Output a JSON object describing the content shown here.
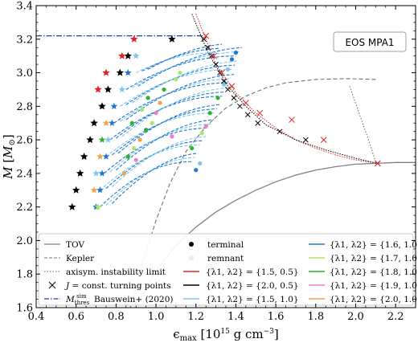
{
  "chart_data": {
    "type": "scatter",
    "eos_label": "EOS MPA1",
    "xlabel": "ϵmax [10^15 g cm^-3]",
    "ylabel": "M [M⊙]",
    "xlim": [
      0.4,
      2.3
    ],
    "ylim": [
      1.6,
      3.4
    ],
    "xticks": [
      "0.4",
      "0.6",
      "0.8",
      "1.0",
      "1.2",
      "1.4",
      "1.6",
      "1.8",
      "2.0",
      "2.2"
    ],
    "yticks": [
      "1.6",
      "1.8",
      "2.0",
      "2.2",
      "2.4",
      "2.6",
      "2.8",
      "3.0",
      "3.2",
      "3.4"
    ],
    "colors": {
      "tov": "#808080",
      "kepler": "#707070",
      "instab": "#606060",
      "threshold": "#1f3fb0",
      "red": "#e0262b",
      "blue": "#1f77d0",
      "light_blue": "#7ec8ec",
      "light_green": "#a6e86a",
      "green": "#2bb32b",
      "pink": "#ea7fc5",
      "orange": "#f0a24a"
    },
    "tov": [
      [
        0.92,
        1.65
      ],
      [
        1.0,
        1.82
      ],
      [
        1.1,
        1.97
      ],
      [
        1.2,
        2.08
      ],
      [
        1.3,
        2.17
      ],
      [
        1.4,
        2.24
      ],
      [
        1.5,
        2.3
      ],
      [
        1.6,
        2.35
      ],
      [
        1.7,
        2.39
      ],
      [
        1.8,
        2.42
      ],
      [
        1.9,
        2.44
      ],
      [
        2.0,
        2.455
      ],
      [
        2.1,
        2.46
      ],
      [
        2.2,
        2.465
      ],
      [
        2.3,
        2.465
      ]
    ],
    "kepler": [
      [
        0.86,
        1.55
      ],
      [
        0.92,
        1.82
      ],
      [
        1.0,
        2.12
      ],
      [
        1.07,
        2.34
      ],
      [
        1.15,
        2.53
      ],
      [
        1.25,
        2.68
      ],
      [
        1.35,
        2.79
      ],
      [
        1.45,
        2.86
      ],
      [
        1.55,
        2.91
      ],
      [
        1.65,
        2.94
      ],
      [
        1.8,
        2.96
      ],
      [
        1.95,
        2.965
      ],
      [
        2.1,
        2.96
      ]
    ],
    "instab": [
      [
        1.97,
        2.92
      ],
      [
        2.02,
        2.75
      ],
      [
        2.07,
        2.58
      ],
      [
        2.1,
        2.47
      ]
    ],
    "threshold_y": 3.22,
    "threshold_x_end": 1.24,
    "sequence_red": [
      [
        1.2,
        3.35
      ],
      [
        1.3,
        3.05
      ],
      [
        1.4,
        2.88
      ],
      [
        1.5,
        2.76
      ],
      [
        1.6,
        2.67
      ],
      [
        1.7,
        2.6
      ],
      [
        1.8,
        2.55
      ],
      [
        1.9,
        2.51
      ],
      [
        2.0,
        2.48
      ],
      [
        2.11,
        2.46
      ]
    ],
    "sequence_black": [
      [
        1.18,
        3.35
      ],
      [
        1.26,
        3.12
      ],
      [
        1.36,
        2.92
      ],
      [
        1.45,
        2.8
      ],
      [
        1.55,
        2.69
      ],
      [
        1.7,
        2.6
      ],
      [
        1.85,
        2.54
      ],
      [
        2.0,
        2.49
      ],
      [
        2.11,
        2.46
      ]
    ],
    "turning_black": [
      [
        1.24,
        3.2
      ],
      [
        1.26,
        3.15
      ],
      [
        1.28,
        3.1
      ],
      [
        1.3,
        3.05
      ],
      [
        1.32,
        3.0
      ],
      [
        1.34,
        2.95
      ],
      [
        1.36,
        2.9
      ],
      [
        1.39,
        2.85
      ],
      [
        1.42,
        2.8
      ],
      [
        1.46,
        2.75
      ],
      [
        1.51,
        2.7
      ],
      [
        1.62,
        2.65
      ],
      [
        1.75,
        2.6
      ],
      [
        2.11,
        2.46
      ]
    ],
    "turning_red": [
      [
        1.25,
        3.22
      ],
      [
        1.29,
        3.1
      ],
      [
        1.33,
        3.0
      ],
      [
        1.38,
        2.92
      ],
      [
        1.45,
        2.82
      ],
      [
        1.52,
        2.76
      ],
      [
        1.68,
        2.72
      ],
      [
        1.84,
        2.6
      ],
      [
        2.11,
        2.46
      ]
    ],
    "remnant_black": [
      [
        0.58,
        2.2
      ],
      [
        0.6,
        2.3
      ],
      [
        0.62,
        2.4
      ],
      [
        0.64,
        2.5
      ],
      [
        0.67,
        2.6
      ],
      [
        0.69,
        2.7
      ],
      [
        0.73,
        2.8
      ],
      [
        0.76,
        2.9
      ],
      [
        0.82,
        3.0
      ],
      [
        0.86,
        3.1
      ],
      [
        1.08,
        3.2
      ]
    ],
    "remnant_red": [
      [
        0.71,
        2.9
      ],
      [
        0.75,
        3.0
      ],
      [
        0.83,
        3.1
      ],
      [
        0.89,
        3.2
      ]
    ],
    "family_lines": [
      {
        "y0": 2.2,
        "x0": 0.72,
        "x1": 1.18,
        "y1": 2.47
      },
      {
        "y0": 2.3,
        "x0": 0.72,
        "x1": 1.22,
        "y1": 2.57
      },
      {
        "y0": 2.4,
        "x0": 0.74,
        "x1": 1.26,
        "y1": 2.67
      },
      {
        "y0": 2.5,
        "x0": 0.75,
        "x1": 1.29,
        "y1": 2.76
      },
      {
        "y0": 2.6,
        "x0": 0.77,
        "x1": 1.33,
        "y1": 2.86
      },
      {
        "y0": 2.7,
        "x0": 0.79,
        "x1": 1.36,
        "y1": 2.94
      },
      {
        "y0": 2.8,
        "x0": 0.82,
        "x1": 1.38,
        "y1": 3.02
      },
      {
        "y0": 2.9,
        "x0": 0.85,
        "x1": 1.4,
        "y1": 3.1
      },
      {
        "y0": 3.0,
        "x0": 0.9,
        "x1": 1.3,
        "y1": 3.12
      }
    ],
    "stars": [
      [
        0.7,
        2.2,
        "blue"
      ],
      [
        0.71,
        2.2,
        "light_green"
      ],
      [
        0.69,
        2.3,
        "orange"
      ],
      [
        0.72,
        2.3,
        "blue"
      ],
      [
        0.7,
        2.4,
        "light_blue"
      ],
      [
        0.73,
        2.4,
        "blue"
      ],
      [
        0.72,
        2.5,
        "orange"
      ],
      [
        0.75,
        2.5,
        "blue"
      ],
      [
        0.73,
        2.6,
        "green"
      ],
      [
        0.76,
        2.6,
        "light_blue"
      ],
      [
        0.75,
        2.7,
        "orange"
      ],
      [
        0.78,
        2.7,
        "blue"
      ],
      [
        0.79,
        2.8,
        "blue"
      ],
      [
        0.83,
        2.9,
        "light_blue"
      ],
      [
        0.86,
        3.0,
        "blue"
      ],
      [
        0.9,
        3.1,
        "light_blue"
      ]
    ],
    "terminals": [
      [
        0.84,
        2.4,
        "orange"
      ],
      [
        0.86,
        2.5,
        "green"
      ],
      [
        0.89,
        2.55,
        "light_green"
      ],
      [
        0.92,
        2.6,
        "orange"
      ],
      [
        0.95,
        2.66,
        "green"
      ],
      [
        0.98,
        2.7,
        "light_green"
      ],
      [
        1.0,
        2.76,
        "pink"
      ],
      [
        0.88,
        2.7,
        "green"
      ],
      [
        0.93,
        2.78,
        "light_green"
      ],
      [
        0.96,
        2.85,
        "green"
      ],
      [
        1.02,
        2.82,
        "orange"
      ],
      [
        1.04,
        2.9,
        "green"
      ],
      [
        1.1,
        2.96,
        "light_green"
      ],
      [
        1.12,
        3.0,
        "light_green"
      ],
      [
        1.18,
        2.55,
        "green"
      ],
      [
        1.23,
        2.64,
        "light_green"
      ],
      [
        1.25,
        2.68,
        "pink"
      ],
      [
        1.27,
        2.76,
        "green"
      ],
      [
        1.31,
        2.85,
        "green"
      ],
      [
        1.34,
        2.93,
        "light_blue"
      ],
      [
        1.36,
        3.02,
        "light_blue"
      ],
      [
        1.38,
        3.08,
        "blue"
      ],
      [
        1.4,
        3.12,
        "blue"
      ],
      [
        1.22,
        2.46,
        "light_blue"
      ],
      [
        1.2,
        2.42,
        "blue"
      ],
      [
        1.08,
        2.62,
        "pink"
      ],
      [
        0.9,
        2.48,
        "pink"
      ]
    ],
    "legend": {
      "col1": [
        "TOV",
        "Kepler",
        "axisym. instability limit",
        "J = const. turning points",
        "M_thres^sim Bauswein+ (2020)"
      ],
      "col2_markers": [
        "terminal",
        "remnant"
      ],
      "col2_lines": [
        "{λ1, λ2} = {1.5, 0.5}",
        "{λ1, λ2} = {2.0, 0.5}",
        "{λ1, λ2} = {1.5, 1.0}"
      ],
      "col3": [
        "{λ1, λ2} = {1.6, 1.0}",
        "{λ1, λ2} = {1.7, 1.0}",
        "{λ1, λ2} = {1.8, 1.0}",
        "{λ1, λ2} = {1.9, 1.0}",
        "{λ1, λ2} = {2.0, 1.0}"
      ]
    }
  }
}
